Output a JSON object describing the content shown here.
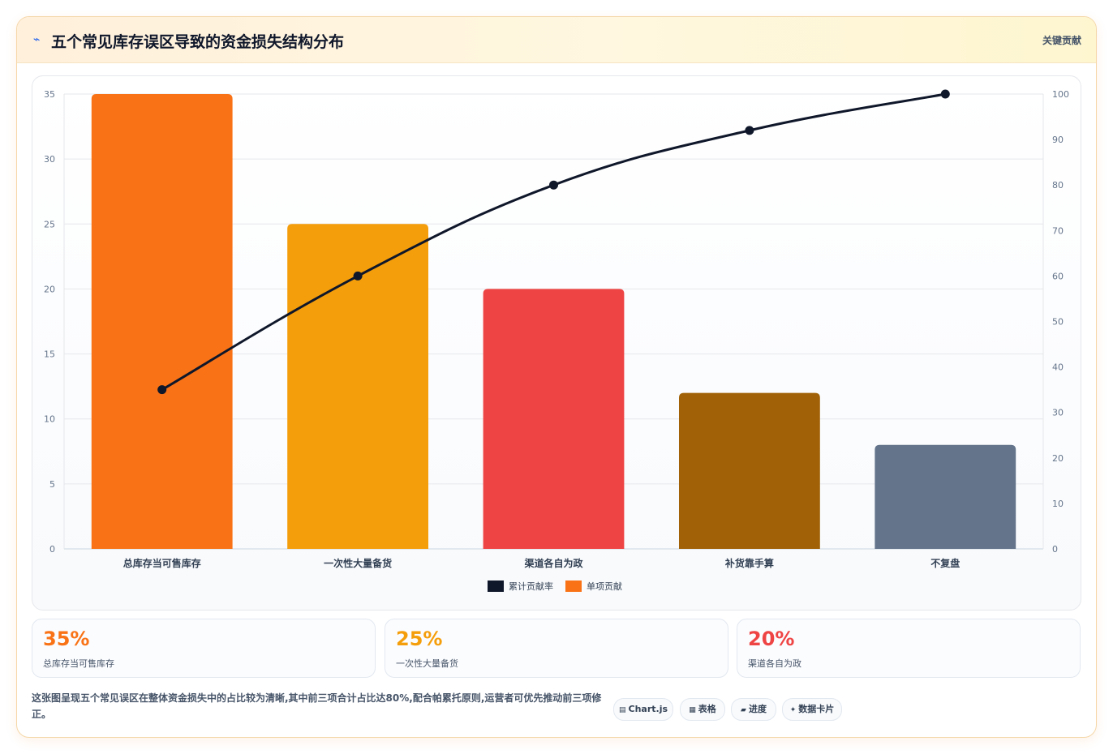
{
  "header": {
    "icon": "lightning-icon",
    "title": "五个常见库存误区导致的资金损失结构分布",
    "right_label": "关键贡献"
  },
  "chart_data": {
    "type": "bar",
    "categories": [
      "总库存当可售库存",
      "一次性大量备货",
      "渠道各自为政",
      "补货靠手算",
      "不复盘"
    ],
    "series": [
      {
        "name": "单项贡献",
        "type": "bar",
        "axis": "left",
        "values": [
          35,
          25,
          20,
          12,
          8
        ],
        "colors": [
          "#f97316",
          "#f59e0b",
          "#ef4444",
          "#a16207",
          "#64748b"
        ]
      },
      {
        "name": "累计贡献率",
        "type": "line",
        "axis": "right",
        "values": [
          35,
          60,
          80,
          92,
          100
        ],
        "color": "#0f172a"
      }
    ],
    "ylim": [
      0,
      35
    ],
    "y_ticks": [
      0,
      5,
      10,
      15,
      20,
      25,
      30,
      35
    ],
    "y2lim": [
      0,
      100
    ],
    "y2_ticks": [
      0,
      10,
      20,
      30,
      40,
      50,
      60,
      70,
      80,
      90,
      100
    ],
    "legend": [
      {
        "name": "累计贡献率",
        "color": "#0f172a"
      },
      {
        "name": "单项贡献",
        "color": "#f97316"
      }
    ],
    "legend_position": "bottom",
    "grid": true
  },
  "stats": [
    {
      "value": "35%",
      "label": "总库存当可售库存",
      "color": "#f97316"
    },
    {
      "value": "25%",
      "label": "一次性大量备货",
      "color": "#f59e0b"
    },
    {
      "value": "20%",
      "label": "渠道各自为政",
      "color": "#ef4444"
    }
  ],
  "summary": "这张图呈现五个常见误区在整体资金损失中的占比较为清晰,其中前三项合计占比达80%,配合帕累托原则,运营者可优先推动前三项修正。",
  "tags": [
    {
      "icon": "chart-icon",
      "glyph": "▤",
      "label": "Chart.js"
    },
    {
      "icon": "table-icon",
      "glyph": "▦",
      "label": "表格"
    },
    {
      "icon": "progress-icon",
      "glyph": "▰",
      "label": "进度"
    },
    {
      "icon": "card-icon",
      "glyph": "✦",
      "label": "数据卡片"
    }
  ]
}
